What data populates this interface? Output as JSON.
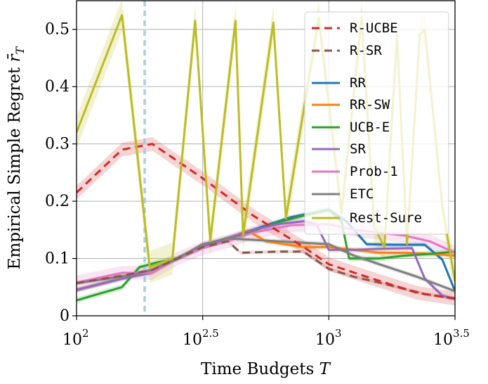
{
  "chart_data": {
    "type": "line",
    "xscale": "log10",
    "xlim_log10": [
      2.0,
      3.5
    ],
    "ylim": [
      0,
      0.55
    ],
    "xlabel": "Time Budgets T",
    "ylabel": "Empirical Simple Regret r̄_T",
    "xticks": [
      {
        "value": 2.0,
        "base": "10",
        "exp": ""
      },
      {
        "value": 2.5,
        "base": "10",
        "exp": "2.5"
      },
      {
        "value": 3.0,
        "base": "10",
        "exp": "3"
      },
      {
        "value": 3.5,
        "base": "10",
        "exp": "3.5"
      }
    ],
    "x_labels": [
      "10",
      "2",
      "10",
      "2.5",
      "10",
      "3",
      "10",
      "3.5"
    ],
    "yticks": [
      {
        "value": 0.0,
        "label": "0"
      },
      {
        "value": 0.1,
        "label": "0.1"
      },
      {
        "value": 0.2,
        "label": "0.2"
      },
      {
        "value": 0.3,
        "label": "0.3"
      },
      {
        "value": 0.4,
        "label": "0.4"
      },
      {
        "value": 0.5,
        "label": "0.5"
      }
    ],
    "vline_log10": 2.27,
    "vline_color": "#a6cde2",
    "legend_position": "top-right",
    "legend": [
      {
        "name": "R-UCBE",
        "color": "#d62728",
        "style": "dashed"
      },
      {
        "name": "R-SR",
        "color": "#8c564b",
        "style": "dashed"
      },
      {
        "name": "RR",
        "color": "#1f77b4",
        "style": "solid"
      },
      {
        "name": "RR-SW",
        "color": "#ff7f0e",
        "style": "solid"
      },
      {
        "name": "UCB-E",
        "color": "#2ca02c",
        "style": "solid"
      },
      {
        "name": "SR",
        "color": "#9467bd",
        "style": "solid"
      },
      {
        "name": "Prob-1",
        "color": "#e377c2",
        "style": "solid"
      },
      {
        "name": "ETC",
        "color": "#7f7f7f",
        "style": "solid"
      },
      {
        "name": "Rest-Sure",
        "color": "#bcbd22",
        "style": "solid"
      }
    ],
    "series": [
      {
        "name": "RR",
        "color": "#1f77b4",
        "style": "solid",
        "band": 0.004,
        "x": [
          2.0,
          2.18,
          2.3,
          2.4,
          2.5,
          2.6,
          2.7,
          2.85,
          3.0,
          3.07,
          3.15,
          3.25,
          3.38,
          3.45,
          3.5
        ],
        "y": [
          0.045,
          0.065,
          0.08,
          0.1,
          0.12,
          0.135,
          0.15,
          0.172,
          0.185,
          0.165,
          0.125,
          0.124,
          0.124,
          0.098,
          0.043
        ]
      },
      {
        "name": "RR-SW",
        "color": "#ff7f0e",
        "style": "solid",
        "band": 0.004,
        "x": [
          2.0,
          2.18,
          2.3,
          2.4,
          2.5,
          2.6,
          2.68,
          2.75,
          2.9,
          3.0,
          3.1,
          3.2,
          3.3,
          3.4,
          3.5
        ],
        "y": [
          0.045,
          0.065,
          0.08,
          0.1,
          0.12,
          0.135,
          0.148,
          0.13,
          0.12,
          0.12,
          0.115,
          0.11,
          0.11,
          0.108,
          0.105
        ]
      },
      {
        "name": "UCB-E",
        "color": "#2ca02c",
        "style": "solid",
        "band": 0.005,
        "x": [
          2.0,
          2.18,
          2.25,
          2.32,
          2.4,
          2.5,
          2.6,
          2.7,
          2.8,
          2.9,
          3.0,
          3.05,
          3.08,
          3.2,
          3.3,
          3.4,
          3.5
        ],
        "y": [
          0.027,
          0.05,
          0.085,
          0.093,
          0.1,
          0.12,
          0.135,
          0.148,
          0.163,
          0.175,
          0.185,
          0.165,
          0.1,
          0.1,
          0.105,
          0.108,
          0.112
        ]
      },
      {
        "name": "SR",
        "color": "#9467bd",
        "style": "solid",
        "band": 0.004,
        "x": [
          2.0,
          2.18,
          2.3,
          2.4,
          2.5,
          2.6,
          2.7,
          2.8,
          2.9,
          2.95,
          3.0,
          3.1,
          3.2,
          3.33,
          3.38,
          3.45,
          3.5
        ],
        "y": [
          0.045,
          0.065,
          0.075,
          0.1,
          0.12,
          0.135,
          0.15,
          0.16,
          0.165,
          0.16,
          0.115,
          0.115,
          0.117,
          0.118,
          0.065,
          0.035,
          0.03
        ]
      },
      {
        "name": "Prob-1",
        "color": "#e377c2",
        "style": "solid",
        "band": 0.012,
        "x": [
          2.0,
          2.18,
          2.3,
          2.4,
          2.5,
          2.6,
          2.7,
          2.85,
          3.0,
          3.1,
          3.2,
          3.3,
          3.4,
          3.5
        ],
        "y": [
          0.058,
          0.075,
          0.075,
          0.1,
          0.118,
          0.13,
          0.145,
          0.158,
          0.16,
          0.15,
          0.145,
          0.14,
          0.13,
          0.11
        ]
      },
      {
        "name": "ETC",
        "color": "#7f7f7f",
        "style": "solid",
        "band": 0.004,
        "x": [
          2.0,
          2.2,
          2.3,
          2.4,
          2.5,
          2.6,
          2.8,
          3.0,
          3.1,
          3.2,
          3.35,
          3.5
        ],
        "y": [
          0.057,
          0.07,
          0.08,
          0.1,
          0.125,
          0.135,
          0.13,
          0.125,
          0.105,
          0.09,
          0.068,
          0.043
        ]
      },
      {
        "name": "R-SR",
        "color": "#8c564b",
        "style": "dashed",
        "band": 0.003,
        "x": [
          2.0,
          2.18,
          2.3,
          2.5,
          2.6,
          2.65,
          2.8,
          2.9,
          3.0,
          3.1,
          3.2,
          3.38,
          3.5
        ],
        "y": [
          0.057,
          0.07,
          0.08,
          0.12,
          0.13,
          0.11,
          0.112,
          0.112,
          0.082,
          0.068,
          0.058,
          0.038,
          0.03
        ]
      },
      {
        "name": "R-UCBE",
        "color": "#d62728",
        "style": "dashed",
        "band": 0.012,
        "x": [
          2.0,
          2.18,
          2.3,
          2.5,
          2.7,
          2.9,
          3.0,
          3.15,
          3.35,
          3.5
        ],
        "y": [
          0.215,
          0.29,
          0.3,
          0.24,
          0.175,
          0.12,
          0.09,
          0.068,
          0.04,
          0.03
        ]
      },
      {
        "name": "Rest-Sure",
        "color": "#bcbd22",
        "style": "solid",
        "band": 0.028,
        "x": [
          2.0,
          2.18,
          2.29,
          2.38,
          2.47,
          2.53,
          2.63,
          2.66,
          2.78,
          2.83,
          2.96,
          3.05,
          3.13,
          3.18,
          3.22,
          3.27,
          3.31,
          3.36,
          3.38,
          3.45,
          3.5
        ],
        "y": [
          0.32,
          0.525,
          0.085,
          0.1,
          0.515,
          0.13,
          0.515,
          0.14,
          0.512,
          0.17,
          0.52,
          0.18,
          0.52,
          0.155,
          0.12,
          0.49,
          0.125,
          0.49,
          0.5,
          0.19,
          0.06
        ]
      }
    ]
  }
}
